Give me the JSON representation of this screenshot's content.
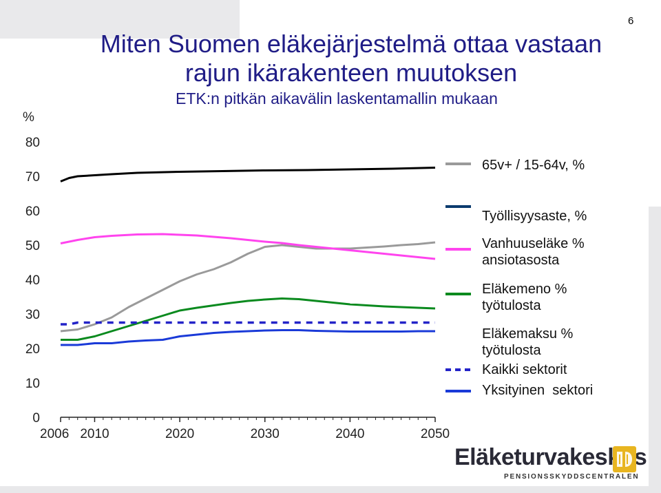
{
  "page_number": "6",
  "chart_data": {
    "type": "line",
    "title": "Miten Suomen eläkejärjestelmä ottaa vastaan rajun ikärakenteen muutoksen",
    "title_lines": [
      "Miten Suomen eläkejärjestelmä ottaa vastaan",
      "rajun ikärakenteen muutoksen"
    ],
    "subtitle": "ETK:n pitkän aikavälin laskentamallin mukaan",
    "ylabel": "%",
    "xlabel": "",
    "xlim": [
      2006,
      2050
    ],
    "ylim": [
      0,
      80
    ],
    "x_ticks": [
      2006,
      2010,
      2020,
      2030,
      2040,
      2050
    ],
    "y_ticks": [
      0,
      10,
      20,
      30,
      40,
      50,
      60,
      70,
      80
    ],
    "grid": false,
    "legend_position": "right",
    "series": [
      {
        "name": "65v+ / 15-64v, %",
        "color": "#9a9a9a",
        "style": "solid",
        "x": [
          2006,
          2008,
          2010,
          2012,
          2014,
          2016,
          2018,
          2020,
          2022,
          2024,
          2026,
          2028,
          2030,
          2032,
          2034,
          2036,
          2038,
          2040,
          2042,
          2044,
          2046,
          2048,
          2050
        ],
        "values": [
          25,
          25.5,
          27,
          29,
          32,
          34.5,
          37,
          39.5,
          41.5,
          43,
          45,
          47.5,
          49.5,
          50,
          49.5,
          49,
          49,
          49,
          49.3,
          49.6,
          50,
          50.3,
          50.8
        ]
      },
      {
        "name": "Työllisyysaste, %",
        "color": "#000000",
        "style": "solid",
        "x": [
          2006,
          2007,
          2008,
          2010,
          2012,
          2015,
          2020,
          2025,
          2030,
          2035,
          2040,
          2045,
          2050
        ],
        "values": [
          68.5,
          69.5,
          70,
          70.3,
          70.6,
          71,
          71.3,
          71.5,
          71.7,
          71.8,
          72,
          72.2,
          72.5
        ]
      },
      {
        "name": "Vanhuuseläke % ansiotasosta",
        "color": "#ff44ee",
        "style": "solid",
        "x": [
          2006,
          2008,
          2010,
          2012,
          2015,
          2018,
          2020,
          2022,
          2024,
          2026,
          2028,
          2030,
          2032,
          2034,
          2036,
          2038,
          2040,
          2042,
          2044,
          2046,
          2048,
          2050
        ],
        "values": [
          50.5,
          51.5,
          52.3,
          52.7,
          53.1,
          53.2,
          53,
          52.8,
          52.4,
          52,
          51.5,
          51,
          50.6,
          50,
          49.5,
          49,
          48.5,
          48,
          47.5,
          47,
          46.5,
          46
        ]
      },
      {
        "name": "Eläkemeno % työtulosta",
        "color": "#0a8a1e",
        "style": "solid",
        "x": [
          2006,
          2008,
          2010,
          2012,
          2014,
          2016,
          2018,
          2020,
          2022,
          2024,
          2026,
          2028,
          2030,
          2032,
          2034,
          2036,
          2038,
          2040,
          2042,
          2044,
          2046,
          2048,
          2050
        ],
        "values": [
          22.5,
          22.5,
          23.5,
          25,
          26.5,
          28,
          29.5,
          31,
          31.8,
          32.5,
          33.2,
          33.8,
          34.2,
          34.5,
          34.3,
          33.8,
          33.3,
          32.8,
          32.5,
          32.2,
          32,
          31.8,
          31.6
        ]
      },
      {
        "name": "Eläkemaksu % työtulosta",
        "color": "#0b3b6e",
        "style": "solid",
        "x": [],
        "values": []
      },
      {
        "name": "Kaikki sektorit",
        "color": "#2323c8",
        "style": "dashed",
        "x": [
          2006,
          2007,
          2008,
          2050
        ],
        "values": [
          27,
          27,
          27.5,
          27.5
        ]
      },
      {
        "name": "Yksityinen  sektori",
        "color": "#1a3ad8",
        "style": "solid",
        "x": [
          2006,
          2008,
          2010,
          2012,
          2014,
          2016,
          2018,
          2020,
          2022,
          2024,
          2026,
          2028,
          2030,
          2032,
          2034,
          2036,
          2038,
          2040,
          2042,
          2044,
          2046,
          2048,
          2050
        ],
        "values": [
          21,
          21,
          21.5,
          21.5,
          22,
          22.3,
          22.5,
          23.5,
          24,
          24.5,
          24.8,
          25,
          25.2,
          25.3,
          25.3,
          25.1,
          25,
          24.9,
          24.9,
          24.9,
          24.9,
          25,
          25
        ]
      }
    ]
  },
  "legend": {
    "items": [
      {
        "lines": [
          "65v+ / 15-64v, %"
        ],
        "color": "#9a9a9a",
        "dashed": false
      },
      {
        "lines": [
          "Työllisyysaste, %"
        ],
        "color": "#0b3b6e",
        "dashed": false
      },
      {
        "lines": [
          "Vanhuuseläke %",
          "ansiotasosta"
        ],
        "color": "#ff44ee",
        "dashed": false
      },
      {
        "lines": [
          "Eläkemeno %",
          "työtulosta"
        ],
        "color": "#0a8a1e",
        "dashed": false
      },
      {
        "lines": [
          "Eläkemaksu %",
          "työtulosta"
        ],
        "color": null,
        "dashed": false
      },
      {
        "lines": [
          "Kaikki sektorit"
        ],
        "color": "#2323c8",
        "dashed": true
      },
      {
        "lines": [
          "Yksityinen  sektori"
        ],
        "color": "#1a3ad8",
        "dashed": false
      }
    ]
  },
  "logo": {
    "name": "Eläketurvakeskus",
    "subtitle": "PENSIONSSKYDDSCENTRALEN",
    "icon": "etk-logo-icon",
    "color": "#2a2a36",
    "accent": "#e8b520"
  }
}
